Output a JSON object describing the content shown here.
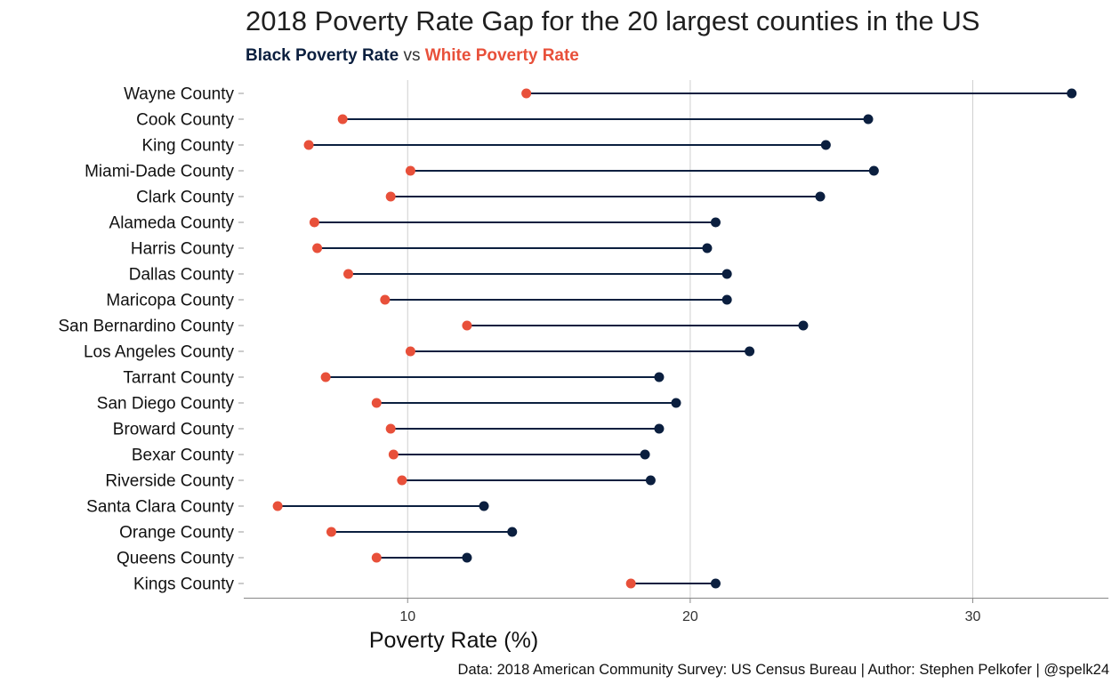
{
  "chart_data": {
    "type": "dumbbell",
    "title": "2018 Poverty Rate Gap for the 20 largest counties in the US",
    "subtitle": {
      "black_label": "Black Poverty Rate",
      "joiner": "vs",
      "white_label": "White Poverty Rate"
    },
    "xlabel": "Poverty Rate (%)",
    "ylabel": "",
    "caption": "Data: 2018 American Community Survey: US Census Bureau | Author: Stephen Pelkofer | @spelk24",
    "xlim": [
      4.2,
      34.8
    ],
    "xticks": [
      10,
      20,
      30
    ],
    "grid": "vertical major",
    "colors": {
      "black": "#0b1f3f",
      "white": "#e8503a",
      "segment": "#0b1f3f",
      "grid": "#cfcfcf"
    },
    "categories": [
      "Wayne County",
      "Cook County",
      "King County",
      "Miami-Dade County",
      "Clark County",
      "Alameda County",
      "Harris County",
      "Dallas County",
      "Maricopa County",
      "San Bernardino County",
      "Los Angeles County",
      "Tarrant County",
      "San Diego County",
      "Broward County",
      "Bexar County",
      "Riverside County",
      "Santa Clara County",
      "Orange County",
      "Queens County",
      "Kings County"
    ],
    "series": [
      {
        "name": "Black Poverty Rate",
        "values": [
          33.5,
          26.3,
          24.8,
          26.5,
          24.6,
          20.9,
          20.6,
          21.3,
          21.3,
          24.0,
          22.1,
          18.9,
          19.5,
          18.9,
          18.4,
          18.6,
          12.7,
          13.7,
          12.1,
          20.9
        ]
      },
      {
        "name": "White Poverty Rate",
        "values": [
          14.2,
          7.7,
          6.5,
          10.1,
          9.4,
          6.7,
          6.8,
          7.9,
          9.2,
          12.1,
          10.1,
          7.1,
          8.9,
          9.4,
          9.5,
          9.8,
          5.4,
          7.3,
          8.9,
          17.9
        ]
      }
    ]
  }
}
